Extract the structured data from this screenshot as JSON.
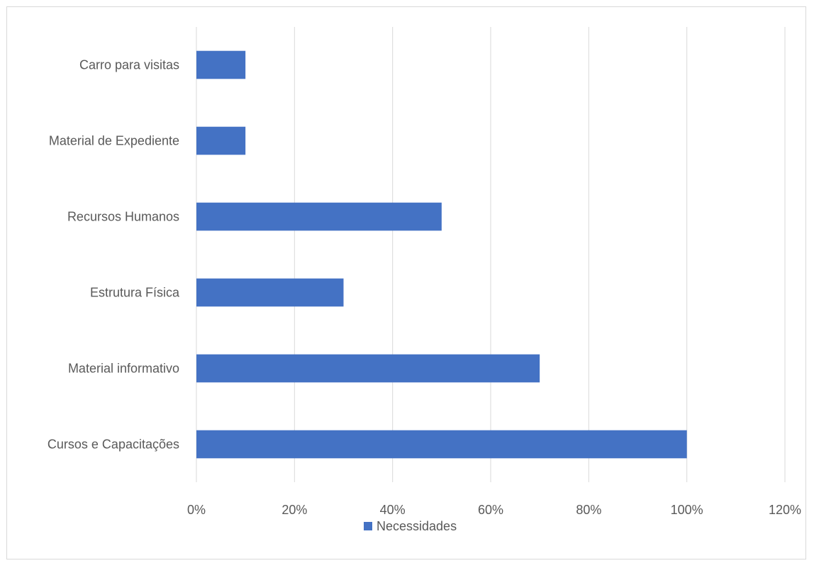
{
  "chart_data": {
    "type": "bar",
    "orientation": "horizontal",
    "categories": [
      "Carro para visitas",
      "Material de Expediente",
      "Recursos Humanos",
      "Estrutura Física",
      "Material informativo",
      "Cursos e Capacitações"
    ],
    "series": [
      {
        "name": "Necessidades",
        "values": [
          10,
          10,
          50,
          30,
          70,
          100
        ],
        "color": "#4472c4"
      }
    ],
    "xlim": [
      0,
      120
    ],
    "xticks": [
      0,
      20,
      40,
      60,
      80,
      100,
      120
    ],
    "xtick_labels": [
      "0%",
      "20%",
      "40%",
      "60%",
      "80%",
      "100%",
      "120%"
    ],
    "grid": "vertical",
    "legend_position": "bottom"
  }
}
